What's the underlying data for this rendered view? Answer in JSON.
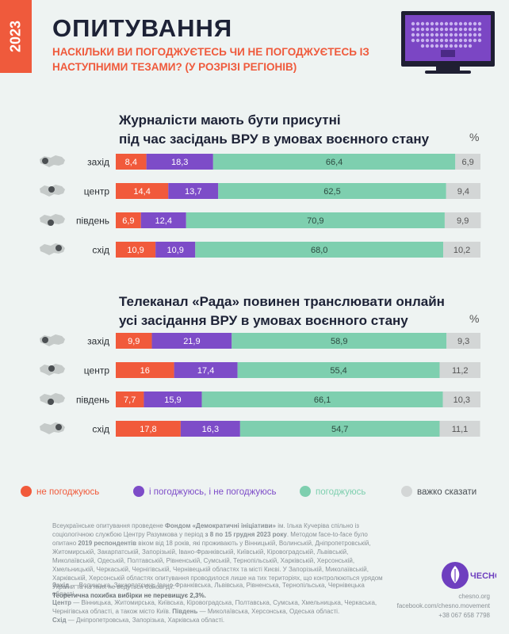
{
  "header": {
    "year": "2023",
    "title": "ОПИТУВАННЯ",
    "subtitle": "НАСКІЛЬКИ ВИ ПОГОДЖУЄТЕСЬ ЧИ НЕ ПОГОДЖУЄТЕСЬ ІЗ НАСТУПНИМИ ТЕЗАМИ? (У РОЗРІЗІ РЕГІОНІВ)"
  },
  "colors": {
    "disagree": "#f15a3b",
    "both": "#7d4cc8",
    "agree": "#7ecfaf",
    "hard": "#d3d6d6"
  },
  "percent_sign": "%",
  "chart_data": [
    {
      "type": "bar",
      "stacked": true,
      "orientation": "horizontal",
      "title_line1": "Журналісти мають бути присутні",
      "title_line2": "під час засідань ВРУ в умовах воєнного стану",
      "unit": "%",
      "categories": [
        "захід",
        "центр",
        "південь",
        "схід"
      ],
      "series": [
        {
          "name": "не погоджуюсь",
          "values": [
            8.4,
            14.4,
            6.9,
            10.9
          ],
          "labels": [
            "8,4",
            "14,4",
            "6,9",
            "10,9"
          ]
        },
        {
          "name": "і погоджуюсь, і не погоджуюсь",
          "values": [
            18.3,
            13.7,
            12.4,
            10.9
          ],
          "labels": [
            "18,3",
            "13,7",
            "12,4",
            "10,9"
          ]
        },
        {
          "name": "погоджуюсь",
          "values": [
            66.4,
            62.5,
            70.9,
            68.0
          ],
          "labels": [
            "66,4",
            "62,5",
            "70,9",
            "68,0"
          ]
        },
        {
          "name": "важко сказати",
          "values": [
            6.9,
            9.4,
            9.9,
            10.2
          ],
          "labels": [
            "6,9",
            "9,4",
            "9,9",
            "10,2"
          ]
        }
      ]
    },
    {
      "type": "bar",
      "stacked": true,
      "orientation": "horizontal",
      "title_line1": "Телеканал «Рада» повинен транслювати онлайн",
      "title_line2": "усі засідання ВРУ в умовах воєнного стану",
      "unit": "%",
      "categories": [
        "захід",
        "центр",
        "південь",
        "схід"
      ],
      "series": [
        {
          "name": "не погоджуюсь",
          "values": [
            9.9,
            16,
            7.7,
            17.8
          ],
          "labels": [
            "9,9",
            "16",
            "7,7",
            "17,8"
          ]
        },
        {
          "name": "і погоджуюсь, і не погоджуюсь",
          "values": [
            21.9,
            17.4,
            15.9,
            16.3
          ],
          "labels": [
            "21,9",
            "17,4",
            "15,9",
            "16,3"
          ]
        },
        {
          "name": "погоджуюсь",
          "values": [
            58.9,
            55.4,
            66.1,
            54.7
          ],
          "labels": [
            "58,9",
            "55,4",
            "66,1",
            "54,7"
          ]
        },
        {
          "name": "важко сказати",
          "values": [
            9.3,
            11.2,
            10.3,
            11.1
          ],
          "labels": [
            "9,3",
            "11,2",
            "10,3",
            "11,1"
          ]
        }
      ]
    }
  ],
  "legend": [
    {
      "label": "не погоджуюсь",
      "color_key": "disagree"
    },
    {
      "label": "і погоджуюсь, і не погоджуюсь",
      "color_key": "both"
    },
    {
      "label": "погоджуюсь",
      "color_key": "agree"
    },
    {
      "label": "важко сказати",
      "color_key": "hard"
    }
  ],
  "footer": {
    "p1_a": "Всеукраїнське опитування проведене ",
    "p1_org": "Фондом «Демократичні ініціативи»",
    "p1_b": " ім. Ількa Кучеріва спільно із соціологічною службою Центру Разумкова у період ",
    "p1_dates": "з 8 по 15 грудня 2023 року",
    "p1_c": ". Методом face-to-face було опитано ",
    "p1_resp": "2019 респондентів",
    "p1_d": " віком від 18 років, які проживають у Вінницькій, Волинській, Дніпропетровській, Житомирській, Закарпатській, Запорізькій, Івано-Франківській, Київській, Кіровоградській, Львівській, Миколаївській, Одеській, Полтавській, Рівненській, Сумській, Тернопільській, Харківській, Херсонській, Хмельницькій, Черкаській, Чернігівській, Чернівецькій областях та місті Києві. У Запорізькій, Миколаївській, Харківській, Херсонській областях опитування проводилося лише на тих територіях, що контролюються урядом України та на яких не ведуться бойові дії.",
    "disclaimer": "Теоретична похибка вибірки не перевищує 2,3%.",
    "west_key": "Захід",
    "west": " — Волинська, Закарпатська, Івано-Франківська, Львівська, Рівненська, Тернопільська, Чернівецька області.",
    "center_key": "Центр",
    "center": " — Вінницька, Житомирська, Київська, Кіровоградська, Полтавська, Сумська, Хмельницька, Черкаська, Чернігівська області, а також місто Київ. ",
    "south_key": "Південь",
    "south": " — Миколаївська, Херсонська, Одеська області.",
    "east_key": "Схід",
    "east": " — Дніпропетровська, Запорізька, Харківська області."
  },
  "brand": {
    "name": "ЧЕСНО",
    "site": "chesno.org",
    "facebook": "facebook.com/chesno.movement",
    "phone": "+38 067 658 7798"
  }
}
